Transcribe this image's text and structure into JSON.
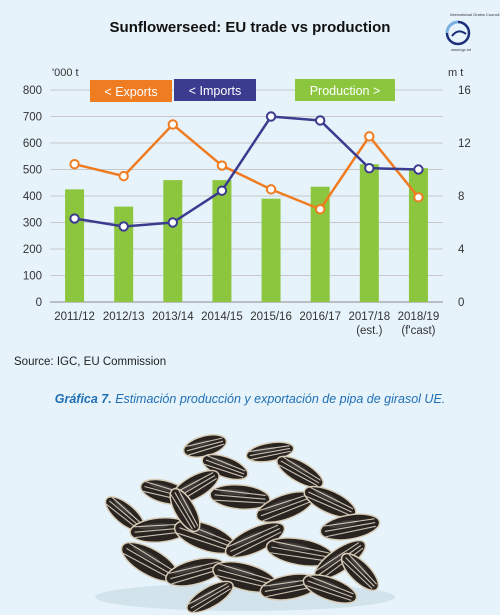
{
  "chart_data": {
    "type": "bar",
    "title": "Sunflowerseed: EU trade vs production",
    "left_unit": "'000 t",
    "right_unit": "m t",
    "categories": [
      "2011/12",
      "2012/13",
      "2013/14",
      "2014/15",
      "2015/16",
      "2016/17",
      "2017/18",
      "2018/19"
    ],
    "category_sublabels": [
      "",
      "",
      "",
      "",
      "",
      "",
      "(est.)",
      "(f'cast)"
    ],
    "left_ticks": [
      0,
      100,
      200,
      300,
      400,
      500,
      600,
      700,
      800
    ],
    "right_ticks": [
      0,
      4,
      8,
      12,
      16
    ],
    "left_ylim": [
      0,
      800
    ],
    "right_ylim": [
      0,
      16
    ],
    "series": [
      {
        "name": "Production",
        "axis": "right",
        "chart": "bar",
        "color": "#8cc63f",
        "values": [
          8.5,
          7.2,
          9.2,
          9.2,
          7.8,
          8.7,
          10.4,
          10.1
        ]
      },
      {
        "name": "Exports",
        "axis": "left",
        "chart": "line",
        "color": "#f07c22",
        "values": [
          520,
          475,
          670,
          515,
          425,
          350,
          625,
          395
        ]
      },
      {
        "name": "Imports",
        "axis": "left",
        "chart": "line",
        "color": "#3b3b8f",
        "values": [
          315,
          285,
          300,
          420,
          700,
          685,
          505,
          500
        ]
      }
    ],
    "legend": {
      "exports_label": "< Exports",
      "imports_label": "< Imports",
      "production_label": "Production >"
    },
    "grid": true,
    "legend_placement": "top"
  },
  "logo": {
    "text": "International Grains Council",
    "url": "www.igc.int"
  },
  "source": "Source: IGC, EU Commission",
  "caption": {
    "lead": "Gráfica 7.",
    "text": " Estimación producción y exportación de pipa de girasol UE."
  }
}
